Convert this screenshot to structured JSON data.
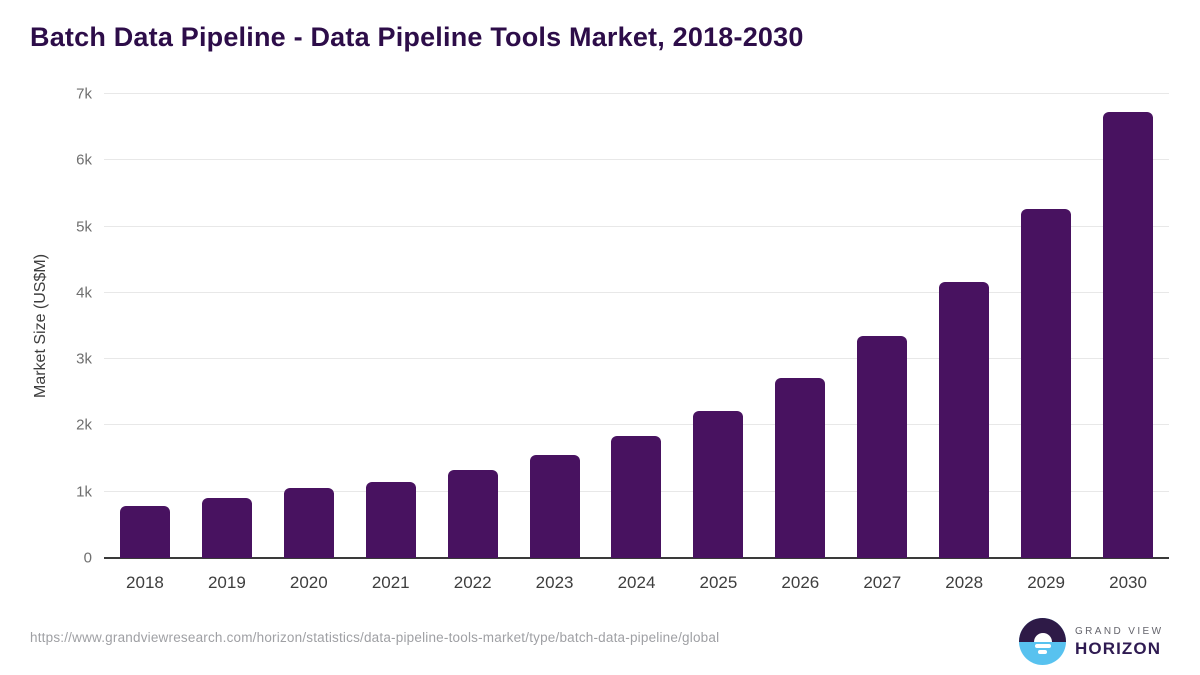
{
  "title": "Batch Data Pipeline - Data Pipeline Tools Market, 2018-2030",
  "colors": {
    "bar": "#481260",
    "title_color": "#2d0d49",
    "grid": "#e8e8e8",
    "baseline": "#3a3a3a",
    "ytick": "#6f6f6f",
    "xtick": "#3e3e3e",
    "ytitle": "#3d3d3d",
    "url": "#9fa0a4",
    "logo_dark": "#2e1a47",
    "logo_blue": "#58c2ef",
    "logo_text1": "#64646c",
    "logo_text2": "#2f1b52"
  },
  "chart_data": {
    "type": "bar",
    "title": "Batch Data Pipeline - Data Pipeline Tools Market, 2018-2030",
    "categories": [
      "2018",
      "2019",
      "2020",
      "2021",
      "2022",
      "2023",
      "2024",
      "2025",
      "2026",
      "2027",
      "2028",
      "2029",
      "2030"
    ],
    "values": [
      790,
      910,
      1060,
      1140,
      1330,
      1550,
      1840,
      2220,
      2710,
      3350,
      4170,
      5260,
      6730
    ],
    "xlabel": "",
    "ylabel": "Market Size (US$M)",
    "ylim": [
      0,
      7000
    ],
    "y_ticks": [
      {
        "label": "0",
        "value": 0
      },
      {
        "label": "1k",
        "value": 1000
      },
      {
        "label": "2k",
        "value": 2000
      },
      {
        "label": "3k",
        "value": 3000
      },
      {
        "label": "4k",
        "value": 4000
      },
      {
        "label": "5k",
        "value": 5000
      },
      {
        "label": "6k",
        "value": 6000
      },
      {
        "label": "7k",
        "value": 7000
      }
    ],
    "grid": true,
    "legend": false,
    "bar_color": "#481260"
  },
  "footer": {
    "url": "https://www.grandviewresearch.com/horizon/statistics/data-pipeline-tools-market/type/batch-data-pipeline/global",
    "logo": {
      "line1": "GRAND VIEW",
      "line2": "HORIZON"
    }
  }
}
